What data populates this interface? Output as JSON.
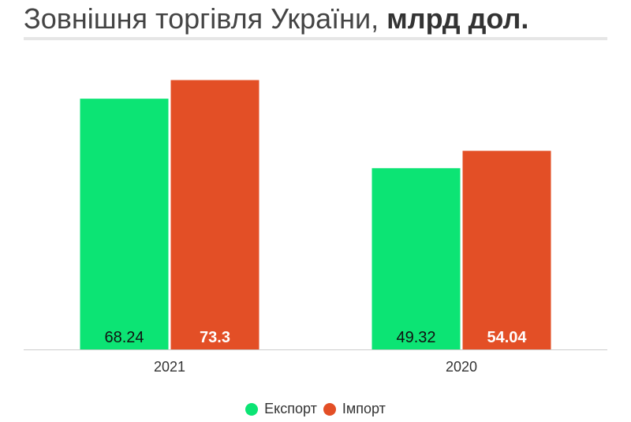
{
  "title": {
    "regular": "Зовнішня торгівля України, ",
    "bold": "млрд дол."
  },
  "colors": {
    "export": "#0ce474",
    "import": "#e34f26",
    "axis": "#cccccc",
    "text": "#333333"
  },
  "chart_data": {
    "type": "bar",
    "categories": [
      "2021",
      "2020"
    ],
    "series": [
      {
        "name": "Експорт",
        "values": [
          68.24,
          49.32
        ],
        "label_color": "#111111"
      },
      {
        "name": "Імпорт",
        "values": [
          73.3,
          54.04
        ],
        "label_color": "#ffffff"
      }
    ],
    "ylim": [
      0,
      82
    ],
    "grid": false,
    "legend": "bottom-center"
  },
  "legend": {
    "export_label": "Експорт",
    "import_label": "Імпорт"
  }
}
